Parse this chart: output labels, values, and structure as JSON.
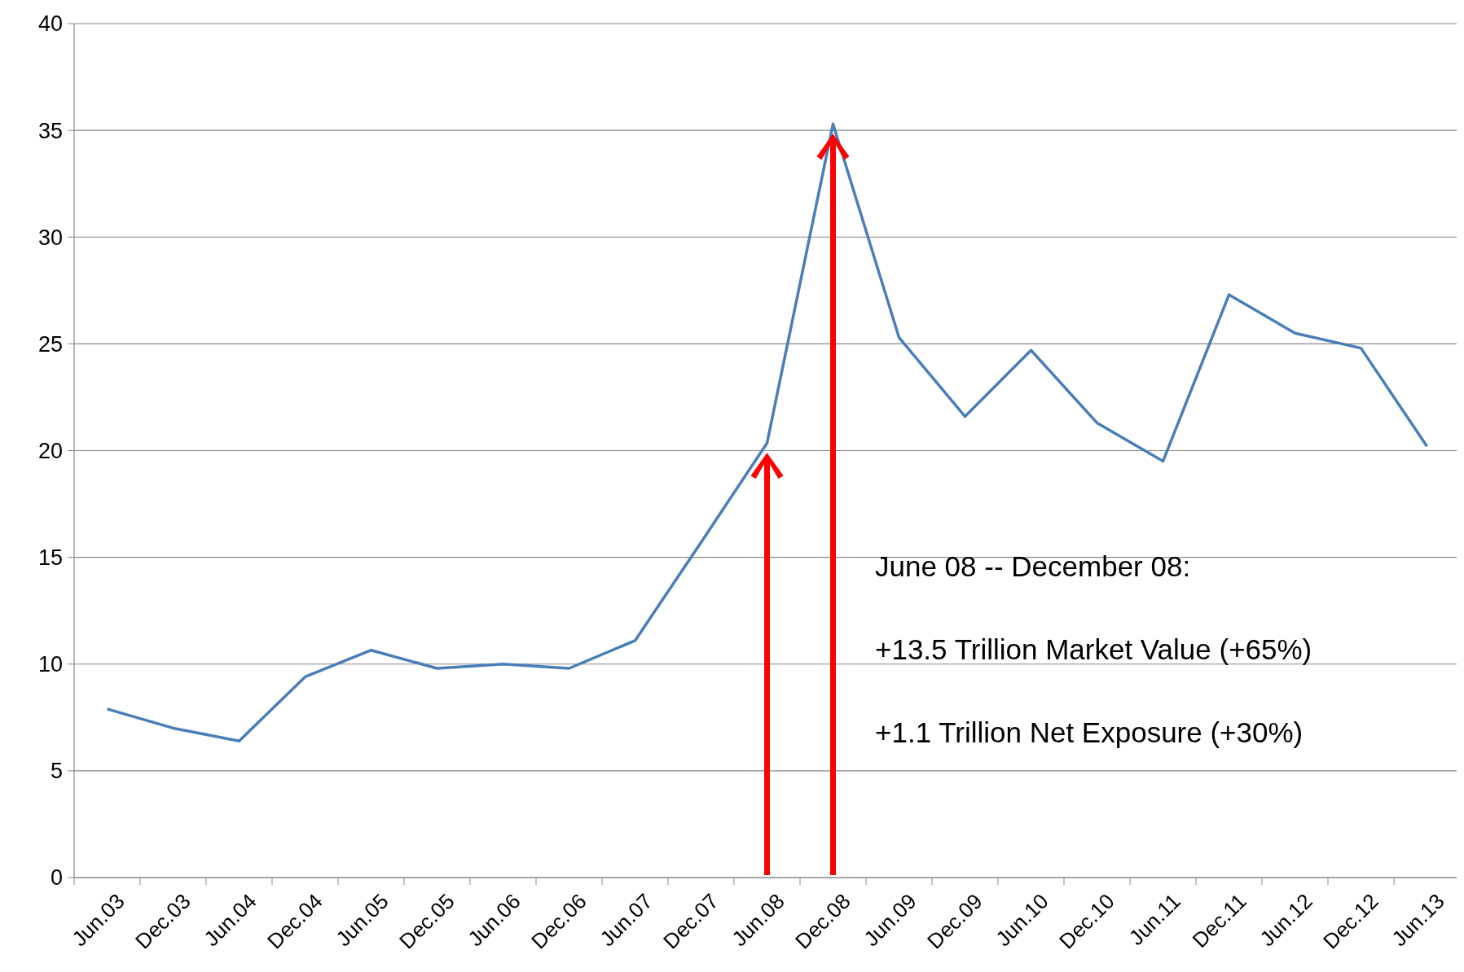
{
  "chart_data": {
    "type": "line",
    "categories": [
      "Jun.03",
      "Dec.03",
      "Jun.04",
      "Dec.04",
      "Jun.05",
      "Dec.05",
      "Jun.06",
      "Dec.06",
      "Jun.07",
      "Dec.07",
      "Jun.08",
      "Dec.08",
      "Jun.09",
      "Dec.09",
      "Jun.10",
      "Dec.10",
      "Jun.11",
      "Dec.11",
      "Jun.12",
      "Dec.12",
      "Jun.13"
    ],
    "series": [
      {
        "color": "#4a7ebb",
        "values": [
          7.9,
          7.0,
          6.4,
          9.4,
          10.65,
          9.8,
          10.0,
          9.8,
          11.1,
          15.7,
          20.35,
          35.3,
          25.3,
          21.6,
          24.7,
          21.3,
          19.5,
          27.3,
          25.5,
          24.8,
          20.2
        ]
      }
    ],
    "ylim": [
      0,
      40
    ],
    "yticks": [
      0,
      5,
      10,
      15,
      20,
      25,
      30,
      35,
      40
    ],
    "grid": "y",
    "line_style": "solid",
    "annotations": [
      "June 08  -- December 08:",
      "+13.5 Trillion Market Value (+65%)",
      "+1.1 Trillion Net Exposure (+30%)"
    ]
  }
}
